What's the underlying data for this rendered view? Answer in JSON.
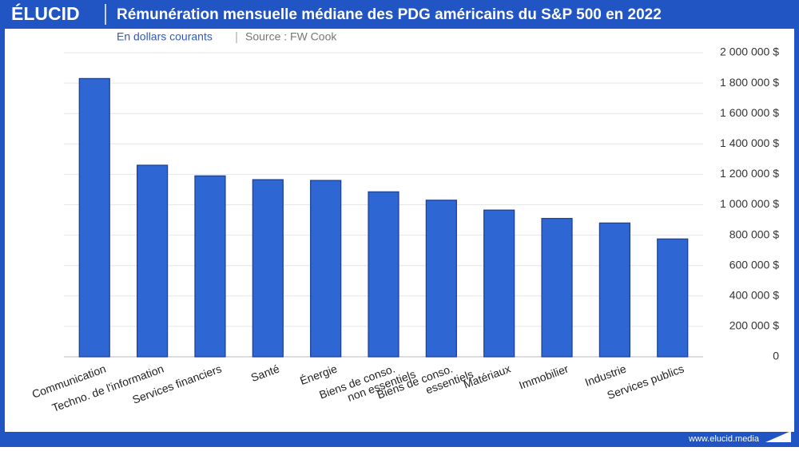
{
  "header": {
    "logo": "ÉLUCID",
    "subtitle": "En dollars courants",
    "source": "Source : FW Cook"
  },
  "footer": {
    "url": "www.elucid.media"
  },
  "chart_data": {
    "type": "bar",
    "title": "Rémunération mensuelle médiane des PDG américains du S&P 500 en 2022",
    "categories": [
      "Communication",
      "Techno. de l'information",
      "Services financiers",
      "Santé",
      "Énergie",
      "Biens de conso.\nnon essentiels",
      "Biens de conso.\nessentiels",
      "Matériaux",
      "Immobilier",
      "Industrie",
      "Services publics"
    ],
    "values": [
      1830000,
      1260000,
      1190000,
      1165000,
      1160000,
      1085000,
      1030000,
      965000,
      910000,
      880000,
      775000
    ],
    "color": "#2e67d3",
    "ylim": [
      0,
      2000000
    ],
    "yticks": [
      0,
      {
        "value": 200000,
        "label": "200 000 $"
      },
      {
        "value": 400000,
        "label": "400 000 $"
      },
      {
        "value": 600000,
        "label": "600 000 $"
      },
      {
        "value": 800000,
        "label": "800 000 $"
      },
      {
        "value": 1000000,
        "label": "1 000 000 $"
      },
      {
        "value": 1200000,
        "label": "1 200 000 $"
      },
      {
        "value": 1400000,
        "label": "1 400 000 $"
      },
      {
        "value": 1600000,
        "label": "1 600 000 $"
      },
      {
        "value": 1800000,
        "label": "1 800 000 $"
      },
      {
        "value": 2000000,
        "label": "2 000 000 $"
      }
    ],
    "grid": true
  }
}
